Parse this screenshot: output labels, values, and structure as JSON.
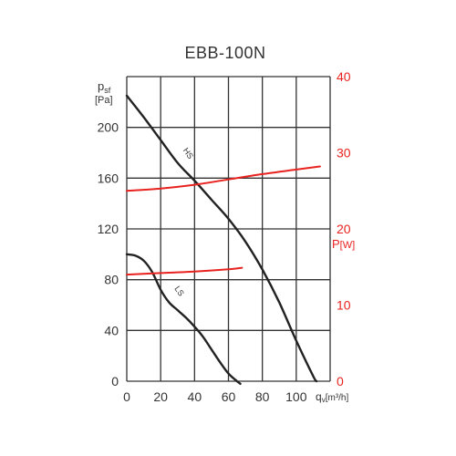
{
  "chart_data": {
    "type": "line",
    "title": "EBB-100N",
    "x_axis": {
      "label_main": "q",
      "label_sub": "v",
      "label_unit": "[m³/h]",
      "ticks": [
        0,
        20,
        40,
        60,
        80,
        100
      ],
      "range": [
        0,
        120
      ]
    },
    "y_axis_left": {
      "label_main": "p",
      "label_sub": "sf",
      "label_unit": "[Pa]",
      "ticks": [
        0,
        40,
        80,
        120,
        160,
        200
      ],
      "range": [
        0,
        240
      ]
    },
    "y_axis_right": {
      "label_main": "P",
      "label_unit": "[W]",
      "ticks": [
        0,
        10,
        20,
        30,
        40
      ],
      "range": [
        0,
        40
      ],
      "color": "#e8231f"
    },
    "grid": true,
    "series": [
      {
        "name": "HS",
        "axis": "left",
        "color": "#222222",
        "x": [
          0,
          10,
          20,
          30,
          40,
          50,
          60,
          70,
          80,
          90,
          100,
          110,
          112
        ],
        "y": [
          225,
          208,
          190,
          172,
          158,
          143,
          128,
          110,
          88,
          62,
          32,
          4,
          0
        ]
      },
      {
        "name": "LS",
        "axis": "left",
        "color": "#222222",
        "x": [
          0,
          5,
          10,
          15,
          20,
          25,
          30,
          35,
          40,
          45,
          50,
          55,
          60,
          65,
          67
        ],
        "y": [
          100,
          99,
          95,
          86,
          72,
          62,
          56,
          50,
          43,
          35,
          25,
          15,
          6,
          0,
          -2
        ]
      },
      {
        "name": "",
        "axis": "right",
        "color": "#e8231f",
        "x": [
          0,
          20,
          40,
          60,
          80,
          100,
          114
        ],
        "y": [
          25,
          25.3,
          25.8,
          26.5,
          27.2,
          27.8,
          28.2
        ]
      },
      {
        "name": "",
        "axis": "right",
        "color": "#e8231f",
        "x": [
          0,
          20,
          40,
          60,
          68
        ],
        "y": [
          14,
          14.2,
          14.4,
          14.7,
          14.9
        ]
      }
    ],
    "curve_labels": [
      {
        "text": "HS",
        "series": "HS",
        "x": 33,
        "y": 182,
        "angle": 55
      },
      {
        "text": "LS",
        "series": "LS",
        "x": 28,
        "y": 73,
        "angle": 55
      }
    ]
  }
}
